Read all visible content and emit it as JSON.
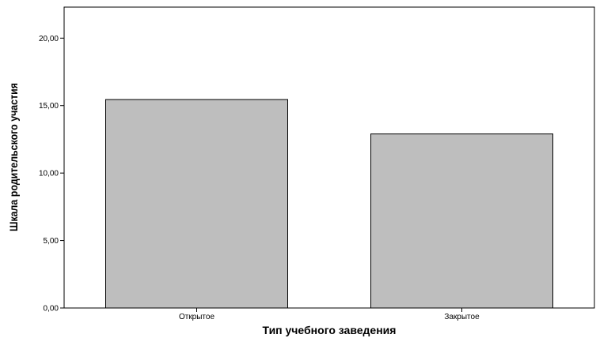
{
  "chart_data": {
    "type": "bar",
    "categories": [
      "Открытое",
      "Закрытое"
    ],
    "values": [
      15.45,
      12.9
    ],
    "xlabel": "Тип учебного заведения",
    "ylabel": "Шкала родительского участия",
    "ylim": [
      0,
      22.3
    ],
    "yticks": [
      0,
      5,
      10,
      15,
      20
    ],
    "ytick_labels": [
      "0,00",
      "5,00",
      "10,00",
      "15,00",
      "20,00"
    ],
    "bar_color": "#bebebe",
    "bar_edge_color": "#000000",
    "grid": false,
    "legend": "none"
  }
}
